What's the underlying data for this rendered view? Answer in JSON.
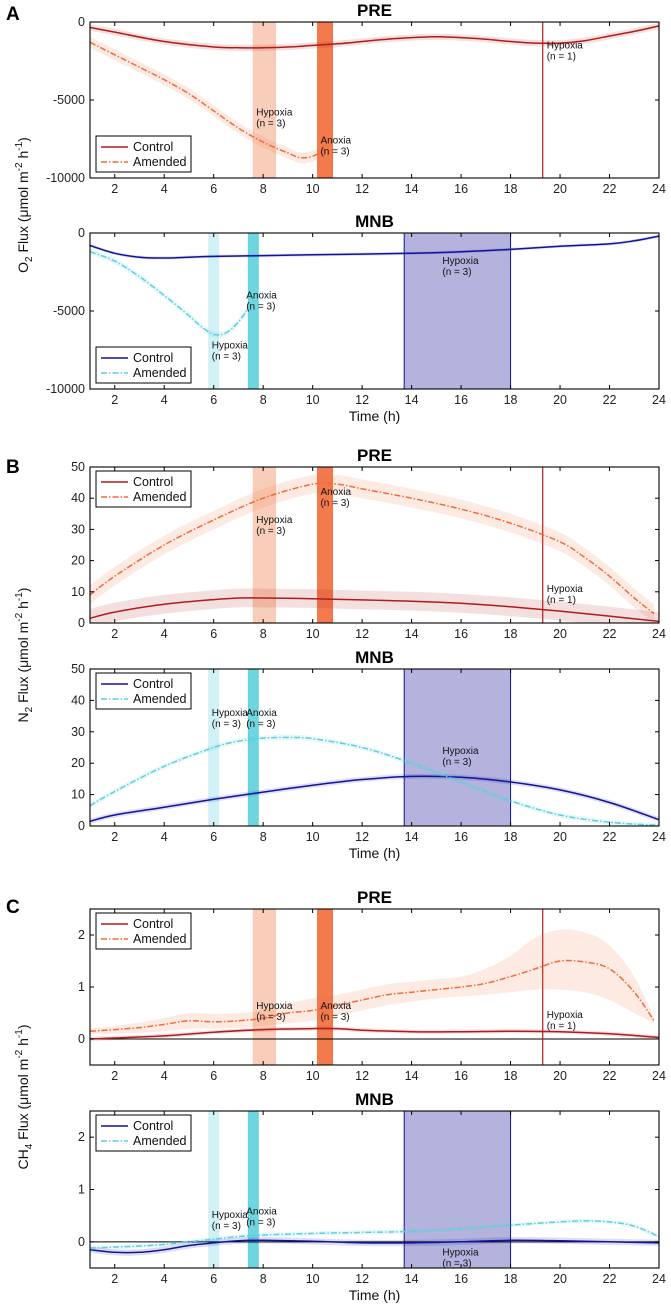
{
  "colors": {
    "control_pre": "#b01c1c",
    "amended_pre": "#ef6c3a",
    "control_mnb": "#11139a",
    "amended_mnb": "#5ccfdf",
    "pre_hypoxia_band": "#f7c9b2",
    "pre_anoxia_band": "#f26b3a",
    "mnb_hypoxia_band": "#cdeff4",
    "mnb_anoxia_band": "#5fd1dc",
    "mnb_control_hypoxia_band": "#a6a6d8"
  },
  "chart_data": [
    {
      "type": "line",
      "panel": "A",
      "title": "PRE",
      "xlabel": "",
      "ylabel": "O2 Flux (μmol m-2 h-1)",
      "xlim": [
        1,
        24
      ],
      "ylim": [
        -10000,
        0
      ],
      "xticks": [
        2,
        4,
        6,
        8,
        10,
        12,
        14,
        16,
        18,
        20,
        22,
        24
      ],
      "yticks": [
        -10000,
        -5000,
        0
      ],
      "ytick_labels": [
        "-10000",
        "-5000",
        "0"
      ],
      "legend": [
        "Control",
        "Amended"
      ],
      "legend_position": "bottom-left",
      "series": [
        {
          "name": "Control",
          "color": "#b01c1c",
          "style": "solid",
          "x": [
            1,
            2,
            4,
            6,
            7,
            8,
            9,
            10,
            11,
            12,
            13,
            14,
            15,
            16,
            17,
            18,
            19,
            20,
            21,
            22,
            23,
            24
          ],
          "y": [
            -350,
            -650,
            -1250,
            -1600,
            -1650,
            -1650,
            -1600,
            -1500,
            -1400,
            -1250,
            -1100,
            -1000,
            -950,
            -1000,
            -1100,
            -1250,
            -1350,
            -1350,
            -1200,
            -900,
            -600,
            -250
          ],
          "band": 200
        },
        {
          "name": "Amended",
          "color": "#ef6c3a",
          "style": "dashdot",
          "x": [
            1,
            2,
            3,
            4,
            5,
            6,
            7,
            8,
            9,
            9.5,
            10,
            10.5
          ],
          "y": [
            -1300,
            -2100,
            -2900,
            -3700,
            -4600,
            -5700,
            -6800,
            -7700,
            -8400,
            -8700,
            -8600,
            -8200
          ],
          "band": 350
        }
      ],
      "shaded_regions": [
        {
          "x": [
            7.6,
            8.5
          ],
          "color": "#f7c9b2",
          "label": "Hypoxia",
          "n": "(n = 3)"
        },
        {
          "x": [
            10.2,
            10.8
          ],
          "color": "#f26b3a",
          "label": "Anoxia",
          "n": "(n = 3)"
        }
      ],
      "vlines": [
        {
          "x": 19.3,
          "color": "#b01c1c",
          "label": "Hypoxia",
          "n": "(n = 1)"
        }
      ]
    },
    {
      "type": "line",
      "panel": "A",
      "title": "MNB",
      "xlabel": "Time (h)",
      "ylabel": "",
      "xlim": [
        1,
        24
      ],
      "ylim": [
        -10000,
        0
      ],
      "xticks": [
        2,
        4,
        6,
        8,
        10,
        12,
        14,
        16,
        18,
        20,
        22,
        24
      ],
      "yticks": [
        -10000,
        -5000,
        0
      ],
      "ytick_labels": [
        "-10000",
        "-5000",
        "0"
      ],
      "legend": [
        "Control",
        "Amended"
      ],
      "legend_position": "bottom-left",
      "series": [
        {
          "name": "Control",
          "color": "#11139a",
          "style": "solid",
          "x": [
            1,
            2,
            3,
            4,
            5,
            6,
            8,
            10,
            12,
            14,
            16,
            18,
            20,
            22,
            23,
            24
          ],
          "y": [
            -800,
            -1300,
            -1550,
            -1600,
            -1550,
            -1500,
            -1450,
            -1400,
            -1350,
            -1300,
            -1200,
            -1050,
            -850,
            -700,
            -500,
            -200
          ],
          "band": 100
        },
        {
          "name": "Amended",
          "color": "#5ccfdf",
          "style": "dashdot",
          "x": [
            1,
            2,
            3,
            4,
            5,
            5.5,
            6,
            6.5,
            7,
            7.5
          ],
          "y": [
            -1200,
            -1800,
            -2800,
            -4000,
            -5300,
            -6000,
            -6500,
            -6400,
            -5700,
            -4600
          ],
          "band": 200
        }
      ],
      "shaded_regions": [
        {
          "x": [
            5.8,
            6.2
          ],
          "color": "#cdeff4",
          "label": "Hypoxia",
          "n": "(n = 3)"
        },
        {
          "x": [
            7.4,
            7.8
          ],
          "color": "#5fd1dc",
          "label": "Anoxia",
          "n": "(n = 3)"
        },
        {
          "x": [
            13.7,
            18.0
          ],
          "color": "#a6a6d8",
          "label": "Hypoxia",
          "n": "(n = 3)"
        }
      ],
      "vlines": []
    },
    {
      "type": "line",
      "panel": "B",
      "title": "PRE",
      "xlabel": "",
      "ylabel": "N2 Flux (μmol m-2 h-1)",
      "xlim": [
        1,
        24
      ],
      "ylim": [
        0,
        50
      ],
      "xticks": [
        2,
        4,
        6,
        8,
        10,
        12,
        14,
        16,
        18,
        20,
        22,
        24
      ],
      "yticks": [
        0,
        10,
        20,
        30,
        40,
        50
      ],
      "ytick_labels": [
        "0",
        "10",
        "20",
        "30",
        "40",
        "50"
      ],
      "legend": [
        "Control",
        "Amended"
      ],
      "legend_position": "top-left",
      "series": [
        {
          "name": "Control",
          "color": "#b01c1c",
          "style": "solid",
          "x": [
            1,
            2,
            4,
            6,
            7,
            8,
            10,
            12,
            14,
            16,
            18,
            20,
            22,
            24
          ],
          "y": [
            1.5,
            3.5,
            6,
            7.5,
            8,
            8,
            7.8,
            7.4,
            7,
            6.3,
            5.2,
            3.8,
            2.2,
            0.5
          ],
          "band": 3
        },
        {
          "name": "Amended",
          "color": "#ef6c3a",
          "style": "dashdot",
          "x": [
            1,
            2,
            4,
            6,
            8,
            10,
            11,
            12,
            14,
            16,
            18,
            20,
            21,
            22,
            23,
            23.8
          ],
          "y": [
            9,
            15,
            25,
            33,
            40,
            44.5,
            44.5,
            43,
            40,
            36.5,
            32,
            26,
            21,
            15,
            8,
            3
          ],
          "band": 3
        }
      ],
      "shaded_regions": [
        {
          "x": [
            7.6,
            8.5
          ],
          "color": "#f7c9b2",
          "label": "Hypoxia",
          "n": "(n = 3)"
        },
        {
          "x": [
            10.2,
            10.8
          ],
          "color": "#f26b3a",
          "label": "Anoxia",
          "n": "(n = 3)"
        }
      ],
      "vlines": [
        {
          "x": 19.3,
          "color": "#b01c1c",
          "label": "Hypoxia",
          "n": "(n = 1)"
        }
      ]
    },
    {
      "type": "line",
      "panel": "B",
      "title": "MNB",
      "xlabel": "Time (h)",
      "ylabel": "",
      "xlim": [
        1,
        24
      ],
      "ylim": [
        0,
        50
      ],
      "xticks": [
        2,
        4,
        6,
        8,
        10,
        12,
        14,
        16,
        18,
        20,
        22,
        24
      ],
      "yticks": [
        0,
        10,
        20,
        30,
        40,
        50
      ],
      "ytick_labels": [
        "0",
        "10",
        "20",
        "30",
        "40",
        "50"
      ],
      "legend": [
        "Control",
        "Amended"
      ],
      "legend_position": "top-left",
      "series": [
        {
          "name": "Control",
          "color": "#11139a",
          "style": "solid",
          "x": [
            1,
            2,
            4,
            6,
            8,
            10,
            12,
            14,
            16,
            18,
            20,
            22,
            24
          ],
          "y": [
            1.5,
            3.5,
            6,
            8.5,
            10.8,
            13,
            14.8,
            15.8,
            15.5,
            14,
            11.5,
            7.5,
            2
          ],
          "band": 0.8
        },
        {
          "name": "Amended",
          "color": "#5ccfdf",
          "style": "dashdot",
          "x": [
            1,
            2,
            4,
            6,
            7,
            8,
            9,
            10,
            12,
            14,
            16,
            18,
            20,
            22,
            24
          ],
          "y": [
            6.5,
            11,
            19,
            25,
            27,
            28,
            28.2,
            27.8,
            25,
            20,
            14,
            8,
            3.5,
            1.2,
            0.2
          ],
          "band": 0.8
        }
      ],
      "shaded_regions": [
        {
          "x": [
            5.8,
            6.2
          ],
          "color": "#cdeff4",
          "label": "Hypoxia",
          "n": "(n = 3)"
        },
        {
          "x": [
            7.4,
            7.8
          ],
          "color": "#5fd1dc",
          "label": "Anoxia",
          "n": "(n = 3)"
        },
        {
          "x": [
            13.7,
            18.0
          ],
          "color": "#a6a6d8",
          "label": "Hypoxia",
          "n": "(n = 3)"
        }
      ],
      "vlines": []
    },
    {
      "type": "line",
      "panel": "C",
      "title": "PRE",
      "xlabel": "",
      "ylabel": "CH4 Flux (μmol m-2 h-1)",
      "xlim": [
        1,
        24
      ],
      "ylim": [
        -0.5,
        2.5
      ],
      "xticks": [
        2,
        4,
        6,
        8,
        10,
        12,
        14,
        16,
        18,
        20,
        22,
        24
      ],
      "yticks": [
        0,
        1,
        2
      ],
      "ytick_labels": [
        "0",
        "1",
        "2"
      ],
      "legend": [
        "Control",
        "Amended"
      ],
      "legend_position": "top-left",
      "series": [
        {
          "name": "Control",
          "color": "#b01c1c",
          "style": "solid",
          "x": [
            1,
            2,
            4,
            6,
            8,
            10,
            11,
            12,
            14,
            16,
            18,
            20,
            22,
            24
          ],
          "y": [
            0,
            0.02,
            0.06,
            0.13,
            0.18,
            0.2,
            0.2,
            0.17,
            0.14,
            0.14,
            0.15,
            0.14,
            0.1,
            0.03
          ],
          "band": 0.04
        },
        {
          "name": "Amended",
          "color": "#ef6c3a",
          "style": "dashdot",
          "x": [
            1,
            2,
            3,
            4,
            5,
            6,
            7,
            8,
            9,
            10,
            11,
            12,
            13,
            14,
            15,
            16,
            17,
            18,
            19,
            20,
            21,
            22,
            23,
            23.8
          ],
          "y": [
            0.15,
            0.18,
            0.22,
            0.28,
            0.35,
            0.33,
            0.35,
            0.4,
            0.5,
            0.55,
            0.65,
            0.75,
            0.85,
            0.9,
            0.95,
            1.0,
            1.07,
            1.2,
            1.35,
            1.5,
            1.48,
            1.35,
            0.9,
            0.35
          ],
          "band_lo": [
            0.1,
            0.1,
            0.12,
            0.15,
            0.2,
            0.2,
            0.22,
            0.25,
            0.3,
            0.35,
            0.45,
            0.55,
            0.65,
            0.72,
            0.78,
            0.82,
            0.85,
            0.9,
            0.95,
            0.95,
            0.9,
            0.75,
            0.5,
            0.3
          ],
          "band_hi": [
            0.2,
            0.25,
            0.32,
            0.4,
            0.5,
            0.48,
            0.5,
            0.55,
            0.68,
            0.78,
            0.85,
            0.95,
            1.05,
            1.1,
            1.15,
            1.2,
            1.35,
            1.6,
            1.95,
            2.1,
            2.05,
            1.8,
            1.2,
            0.4
          ]
        }
      ],
      "shaded_regions": [
        {
          "x": [
            7.6,
            8.5
          ],
          "color": "#f7c9b2",
          "label": "Hypoxia",
          "n": "(n = 3)"
        },
        {
          "x": [
            10.2,
            10.8
          ],
          "color": "#f26b3a",
          "label": "Anoxia",
          "n": "(n = 3)"
        }
      ],
      "vlines": [
        {
          "x": 19.3,
          "color": "#b01c1c",
          "label": "Hypoxia",
          "n": "(n = 1)"
        }
      ],
      "zero_line": true
    },
    {
      "type": "line",
      "panel": "C",
      "title": "MNB",
      "xlabel": "Time (h)",
      "ylabel": "",
      "xlim": [
        1,
        24
      ],
      "ylim": [
        -0.5,
        2.5
      ],
      "xticks": [
        2,
        4,
        6,
        8,
        10,
        12,
        14,
        16,
        18,
        20,
        22,
        24
      ],
      "yticks": [
        0,
        1,
        2
      ],
      "ytick_labels": [
        "0",
        "1",
        "2"
      ],
      "legend": [
        "Control",
        "Amended"
      ],
      "legend_position": "top-left",
      "series": [
        {
          "name": "Control",
          "color": "#11139a",
          "style": "solid",
          "x": [
            1,
            2,
            3,
            4,
            5,
            6,
            7,
            8,
            10,
            12,
            14,
            16,
            18,
            20,
            22,
            24
          ],
          "y": [
            -0.15,
            -0.2,
            -0.2,
            -0.15,
            -0.07,
            -0.02,
            0.02,
            0.03,
            0.01,
            -0.02,
            -0.02,
            0.0,
            0.03,
            0.02,
            0.0,
            -0.02
          ],
          "band": 0.06
        },
        {
          "name": "Amended",
          "color": "#5ccfdf",
          "style": "dashdot",
          "x": [
            1,
            2,
            3,
            4,
            5,
            6,
            7,
            8,
            10,
            12,
            14,
            16,
            18,
            20,
            21,
            22,
            23,
            24
          ],
          "y": [
            -0.12,
            -0.1,
            -0.08,
            -0.05,
            0.0,
            0.05,
            0.1,
            0.13,
            0.16,
            0.18,
            0.2,
            0.25,
            0.32,
            0.38,
            0.4,
            0.38,
            0.3,
            0.1
          ],
          "band": 0.04
        }
      ],
      "shaded_regions": [
        {
          "x": [
            5.8,
            6.2
          ],
          "color": "#cdeff4",
          "label": "Hypoxia",
          "n": "(n = 3)"
        },
        {
          "x": [
            7.4,
            7.8
          ],
          "color": "#5fd1dc",
          "label": "Anoxia",
          "n": "(n = 3)"
        },
        {
          "x": [
            13.7,
            18.0
          ],
          "color": "#a6a6d8",
          "label": "Hypoxia",
          "n": "(n = 3)"
        }
      ],
      "vlines": [],
      "zero_line": true
    }
  ],
  "panel_letters": [
    "A",
    "B",
    "C"
  ],
  "ylabel_parts": {
    "A": {
      "main": "O",
      "sub": "2",
      "rest": " Flux (μmol m",
      "sup1": "-2",
      "mid": " h",
      "sup2": "-1",
      "end": ")"
    },
    "B": {
      "main": "N",
      "sub": "2",
      "rest": " Flux (μmol m",
      "sup1": "-2",
      "mid": " h",
      "sup2": "-1",
      "end": ")"
    },
    "C": {
      "main": "CH",
      "sub": "4",
      "rest": " Flux (μmol m",
      "sup1": "-2",
      "mid": " h",
      "sup2": "-1",
      "end": ")"
    }
  }
}
